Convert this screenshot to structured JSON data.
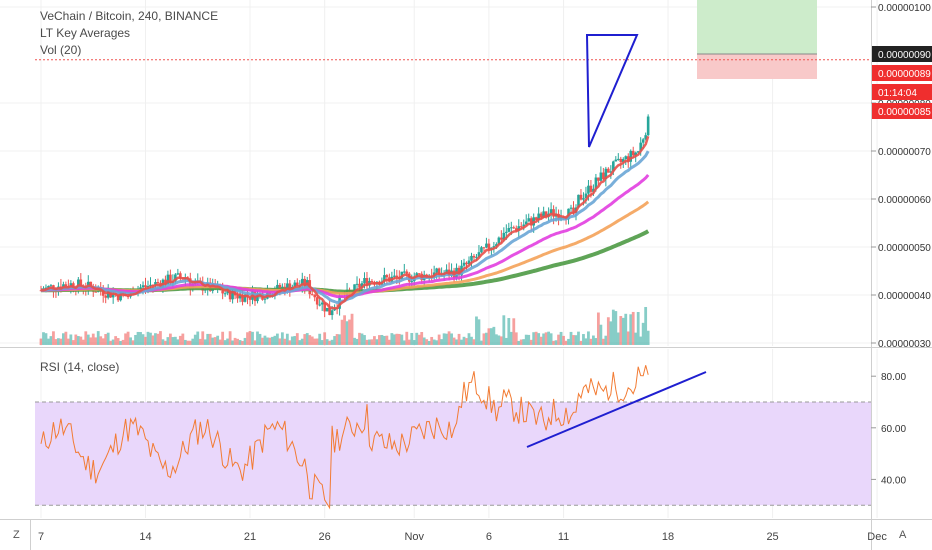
{
  "header": {
    "symbol_line": "VeChain / Bitcoin, 240, BINANCE",
    "study_1": "LT Key Averages",
    "study_2": "Vol (20)"
  },
  "rsi_panel": {
    "label": "RSI (14, close)"
  },
  "corner_buttons": {
    "left": "Z",
    "right": "A"
  },
  "colors": {
    "up": "#26a69a",
    "down": "#ef5350",
    "ema_red": "#e8504a",
    "ema_blue": "#6aa6d6",
    "ema_magenta": "#e23ee0",
    "ema_orange": "#f4a259",
    "ema_green": "#4e9a45",
    "rsi_line": "#f27b33",
    "rsi_band": "#e9d7fb",
    "trend_blue": "#1f1fd0",
    "target_green": "#cdeccb",
    "stop_red": "#f8c9c9"
  },
  "chart_data": [
    {
      "type": "candlestick",
      "title": "VeChain / Bitcoin, 240, BINANCE",
      "x_tick_labels": [
        "7",
        "14",
        "21",
        "26",
        "Nov",
        "6",
        "11",
        "18",
        "25",
        "Dec"
      ],
      "y_tick_labels": [
        "0.00000100",
        "0.00000080",
        "0.00000070",
        "0.00000060",
        "0.00000050",
        "0.00000040",
        "0.00000030"
      ],
      "ylim": [
        3e-07,
        1e-06
      ],
      "price_tags": [
        {
          "text": "0.00000090",
          "style": "dark"
        },
        {
          "text": "0.00000089",
          "style": "red"
        },
        {
          "text": "01:14:04",
          "style": "red"
        },
        {
          "text": "0.00000085",
          "style": "red"
        }
      ],
      "current_price": 8.9e-07,
      "moving_averages": [
        "ema_red",
        "ema_blue",
        "ema_magenta",
        "ema_orange",
        "ema_green"
      ],
      "annotations": [
        "position-long-box",
        "triangle-pattern"
      ]
    },
    {
      "type": "line",
      "title": "RSI (14, close)",
      "y_tick_labels": [
        "80.00",
        "60.00",
        "40.00"
      ],
      "ylim": [
        28,
        90
      ],
      "band": [
        30,
        70
      ],
      "annotations": [
        "rising-trendline"
      ]
    }
  ]
}
